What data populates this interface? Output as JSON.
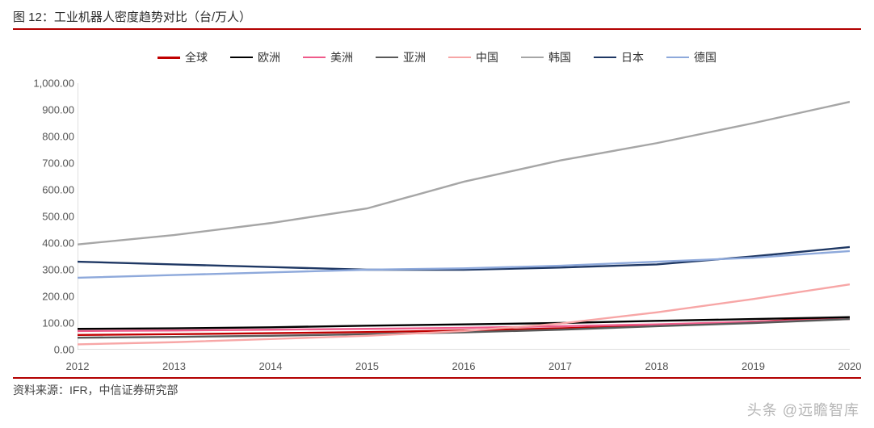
{
  "title": "图 12：工业机器人密度趋势对比（台/万人）",
  "source": "资料来源：IFR，中信证券研究部",
  "watermark": "头条 @远瞻智库",
  "chart": {
    "type": "line",
    "background_color": "#ffffff",
    "title_rule_color": "#b20000",
    "axis_color": "#bfbfbf",
    "text_color": "#555555",
    "title_fontsize": 15,
    "tick_fontsize": 13,
    "legend_fontsize": 14,
    "line_width": 2.4,
    "x": {
      "values": [
        2012,
        2013,
        2014,
        2015,
        2016,
        2017,
        2018,
        2019,
        2020
      ]
    },
    "y": {
      "min": 0,
      "max": 1000,
      "step": 100,
      "decimals": 2,
      "labels": [
        "0.00",
        "100.00",
        "200.00",
        "300.00",
        "400.00",
        "500.00",
        "600.00",
        "700.00",
        "800.00",
        "900.00",
        "1,000.00"
      ]
    },
    "legend_order": [
      "全球",
      "欧洲",
      "美洲",
      "亚洲",
      "中国",
      "韩国",
      "日本",
      "德国"
    ],
    "series": {
      "全球": {
        "color": "#c00000",
        "width": 3.0,
        "values": [
          55,
          58,
          62,
          66,
          72,
          80,
          90,
          105,
          120
        ]
      },
      "欧洲": {
        "color": "#000000",
        "width": 2.4,
        "values": [
          78,
          80,
          84,
          90,
          95,
          100,
          108,
          115,
          122
        ]
      },
      "美洲": {
        "color": "#ef5b8a",
        "width": 2.4,
        "values": [
          70,
          72,
          75,
          78,
          82,
          88,
          95,
          105,
          115
        ]
      },
      "亚洲": {
        "color": "#595959",
        "width": 2.4,
        "values": [
          45,
          48,
          52,
          58,
          65,
          75,
          88,
          100,
          115
        ]
      },
      "中国": {
        "color": "#f7a6a6",
        "width": 2.4,
        "values": [
          20,
          28,
          40,
          52,
          70,
          98,
          140,
          190,
          245
        ]
      },
      "韩国": {
        "color": "#a6a6a6",
        "width": 2.4,
        "values": [
          395,
          430,
          475,
          530,
          630,
          710,
          775,
          850,
          930
        ]
      },
      "日本": {
        "color": "#1f3864",
        "width": 2.4,
        "values": [
          330,
          320,
          310,
          300,
          300,
          308,
          320,
          350,
          385
        ]
      },
      "德国": {
        "color": "#8ea9db",
        "width": 2.4,
        "values": [
          270,
          280,
          290,
          300,
          305,
          315,
          330,
          345,
          370
        ]
      }
    }
  }
}
